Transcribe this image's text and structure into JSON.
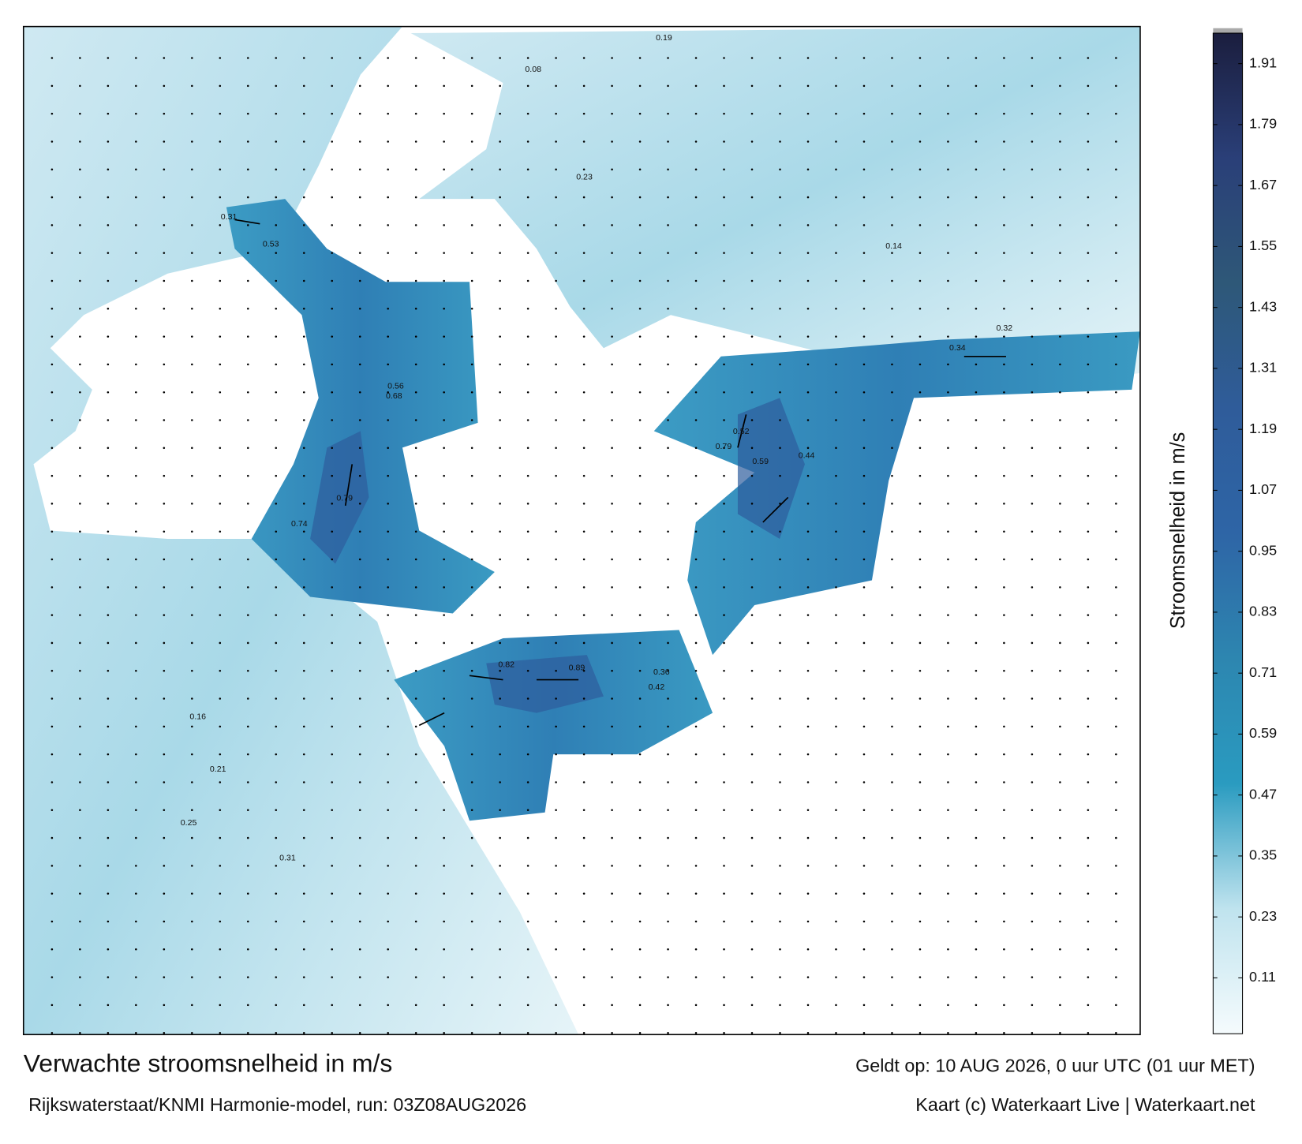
{
  "header": {
    "title": "Verwachte stroomsnelheid in m/s",
    "subtitle": "Rijkswaterstaat/KNMI Harmonie-model, run: 03Z08AUG2026",
    "valid": "Geldt op: 10 AUG 2026, 0 uur UTC (01 uur MET)",
    "credit": "Kaart (c) Waterkaart Live | Waterkaart.net"
  },
  "colorbar": {
    "label": "Stroomsnelheid in m/s",
    "ylim": [
      0,
      1.97
    ],
    "ticks": [
      0.11,
      0.23,
      0.35,
      0.47,
      0.59,
      0.71,
      0.83,
      0.95,
      1.07,
      1.19,
      1.31,
      1.43,
      1.55,
      1.67,
      1.79,
      1.91
    ],
    "colors": [
      "#f5fbfd",
      "#bfe3ee",
      "#2a9bc0",
      "#2d86b0",
      "#2e65a6",
      "#2f5c9a",
      "#2e5878",
      "#2a3f78",
      "#1b1e3e"
    ]
  },
  "map_labels": [
    0.82,
    0.89,
    0.74,
    0.79,
    0.68,
    0.56,
    0.52,
    0.79,
    0.59,
    0.44,
    0.36,
    0.42,
    0.31,
    0.53,
    0.23,
    0.19,
    0.16,
    0.21,
    0.25,
    0.31,
    0.34,
    0.32,
    0.08,
    0.14
  ]
}
